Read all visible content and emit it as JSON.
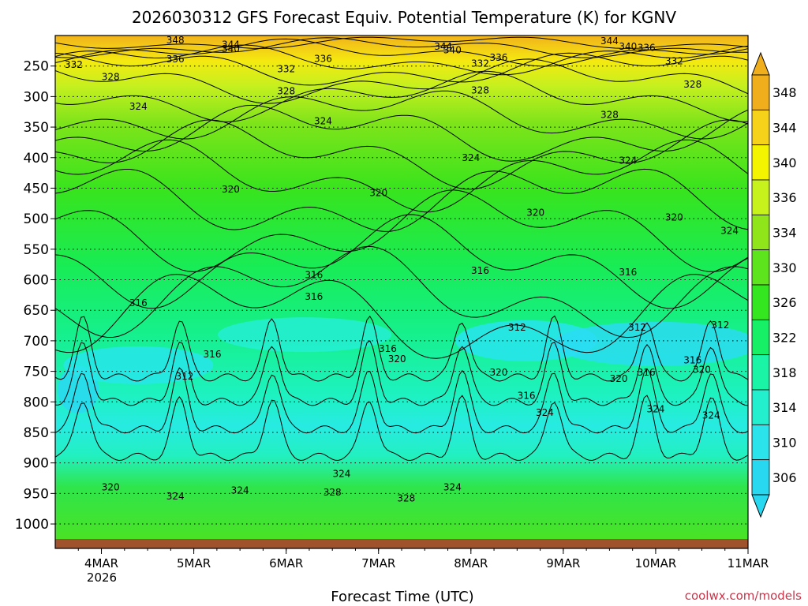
{
  "chart_data": {
    "type": "heatmap",
    "title": "2026030312 GFS Forecast Equiv. Potential Temperature (K) for KGNV",
    "xlabel": "Forecast Time (UTC)",
    "ylabel": "",
    "credit": "coolwx.com/models",
    "x_start_label": "2026",
    "x_ticks": [
      "4MAR",
      "5MAR",
      "6MAR",
      "7MAR",
      "8MAR",
      "9MAR",
      "10MAR",
      "11MAR"
    ],
    "x_range_days": [
      3.5,
      11.0
    ],
    "y_ticks": [
      250,
      300,
      350,
      400,
      450,
      500,
      550,
      600,
      650,
      700,
      750,
      800,
      850,
      900,
      950,
      1000
    ],
    "y_range_hpa": [
      200,
      1040
    ],
    "colorbar": {
      "ticks": [
        306,
        310,
        314,
        318,
        322,
        326,
        330,
        334,
        336,
        340,
        344,
        348
      ],
      "colors": [
        "#27d8f0",
        "#2be3ea",
        "#23efcf",
        "#19f4a6",
        "#17ef66",
        "#33e61f",
        "#5de41c",
        "#8fe51a",
        "#c8f21c",
        "#f4f400",
        "#f6d21a",
        "#f1ae1c"
      ]
    },
    "contour_labels": [
      {
        "value": "348",
        "day": 4.8,
        "p": 208
      },
      {
        "value": "344",
        "day": 5.4,
        "p": 215
      },
      {
        "value": "340",
        "day": 5.4,
        "p": 222
      },
      {
        "value": "336",
        "day": 4.8,
        "p": 239
      },
      {
        "value": "332",
        "day": 3.7,
        "p": 248
      },
      {
        "value": "328",
        "day": 4.1,
        "p": 268
      },
      {
        "value": "332",
        "day": 6.0,
        "p": 255
      },
      {
        "value": "336",
        "day": 6.4,
        "p": 238
      },
      {
        "value": "344",
        "day": 7.7,
        "p": 218
      },
      {
        "value": "340",
        "day": 7.8,
        "p": 224
      },
      {
        "value": "336",
        "day": 8.3,
        "p": 236
      },
      {
        "value": "332",
        "day": 8.1,
        "p": 246
      },
      {
        "value": "344",
        "day": 9.5,
        "p": 209
      },
      {
        "value": "340",
        "day": 9.7,
        "p": 218
      },
      {
        "value": "336",
        "day": 9.9,
        "p": 220
      },
      {
        "value": "332",
        "day": 10.2,
        "p": 242
      },
      {
        "value": "328",
        "day": 10.4,
        "p": 280
      },
      {
        "value": "328",
        "day": 6.0,
        "p": 291
      },
      {
        "value": "328",
        "day": 8.1,
        "p": 290
      },
      {
        "value": "328",
        "day": 9.5,
        "p": 330
      },
      {
        "value": "324",
        "day": 4.4,
        "p": 316
      },
      {
        "value": "324",
        "day": 6.4,
        "p": 340
      },
      {
        "value": "324",
        "day": 8.0,
        "p": 400
      },
      {
        "value": "324",
        "day": 9.7,
        "p": 405
      },
      {
        "value": "324",
        "day": 10.8,
        "p": 520
      },
      {
        "value": "320",
        "day": 5.4,
        "p": 452
      },
      {
        "value": "320",
        "day": 7.0,
        "p": 458
      },
      {
        "value": "320",
        "day": 8.7,
        "p": 490
      },
      {
        "value": "320",
        "day": 10.2,
        "p": 498
      },
      {
        "value": "316",
        "day": 6.3,
        "p": 592
      },
      {
        "value": "316",
        "day": 6.3,
        "p": 628
      },
      {
        "value": "316",
        "day": 4.4,
        "p": 638
      },
      {
        "value": "316",
        "day": 8.1,
        "p": 585
      },
      {
        "value": "316",
        "day": 9.7,
        "p": 588
      },
      {
        "value": "312",
        "day": 4.9,
        "p": 758
      },
      {
        "value": "316",
        "day": 5.2,
        "p": 722
      },
      {
        "value": "312",
        "day": 8.5,
        "p": 678
      },
      {
        "value": "312",
        "day": 9.8,
        "p": 678
      },
      {
        "value": "312",
        "day": 10.7,
        "p": 674
      },
      {
        "value": "316",
        "day": 7.1,
        "p": 713
      },
      {
        "value": "320",
        "day": 7.2,
        "p": 730
      },
      {
        "value": "320",
        "day": 8.3,
        "p": 752
      },
      {
        "value": "316",
        "day": 8.6,
        "p": 790
      },
      {
        "value": "324",
        "day": 8.8,
        "p": 818
      },
      {
        "value": "320",
        "day": 9.6,
        "p": 762
      },
      {
        "value": "316",
        "day": 9.9,
        "p": 752
      },
      {
        "value": "316",
        "day": 10.4,
        "p": 732
      },
      {
        "value": "320",
        "day": 10.5,
        "p": 747
      },
      {
        "value": "324",
        "day": 10.0,
        "p": 812
      },
      {
        "value": "324",
        "day": 10.6,
        "p": 822
      },
      {
        "value": "324",
        "day": 6.6,
        "p": 918
      },
      {
        "value": "328",
        "day": 6.5,
        "p": 948
      },
      {
        "value": "324",
        "day": 5.5,
        "p": 945
      },
      {
        "value": "324",
        "day": 4.8,
        "p": 955
      },
      {
        "value": "320",
        "day": 4.1,
        "p": 940
      },
      {
        "value": "328",
        "day": 7.3,
        "p": 958
      },
      {
        "value": "324",
        "day": 7.8,
        "p": 940
      }
    ],
    "grid": true,
    "legend": "colorbar-right"
  }
}
